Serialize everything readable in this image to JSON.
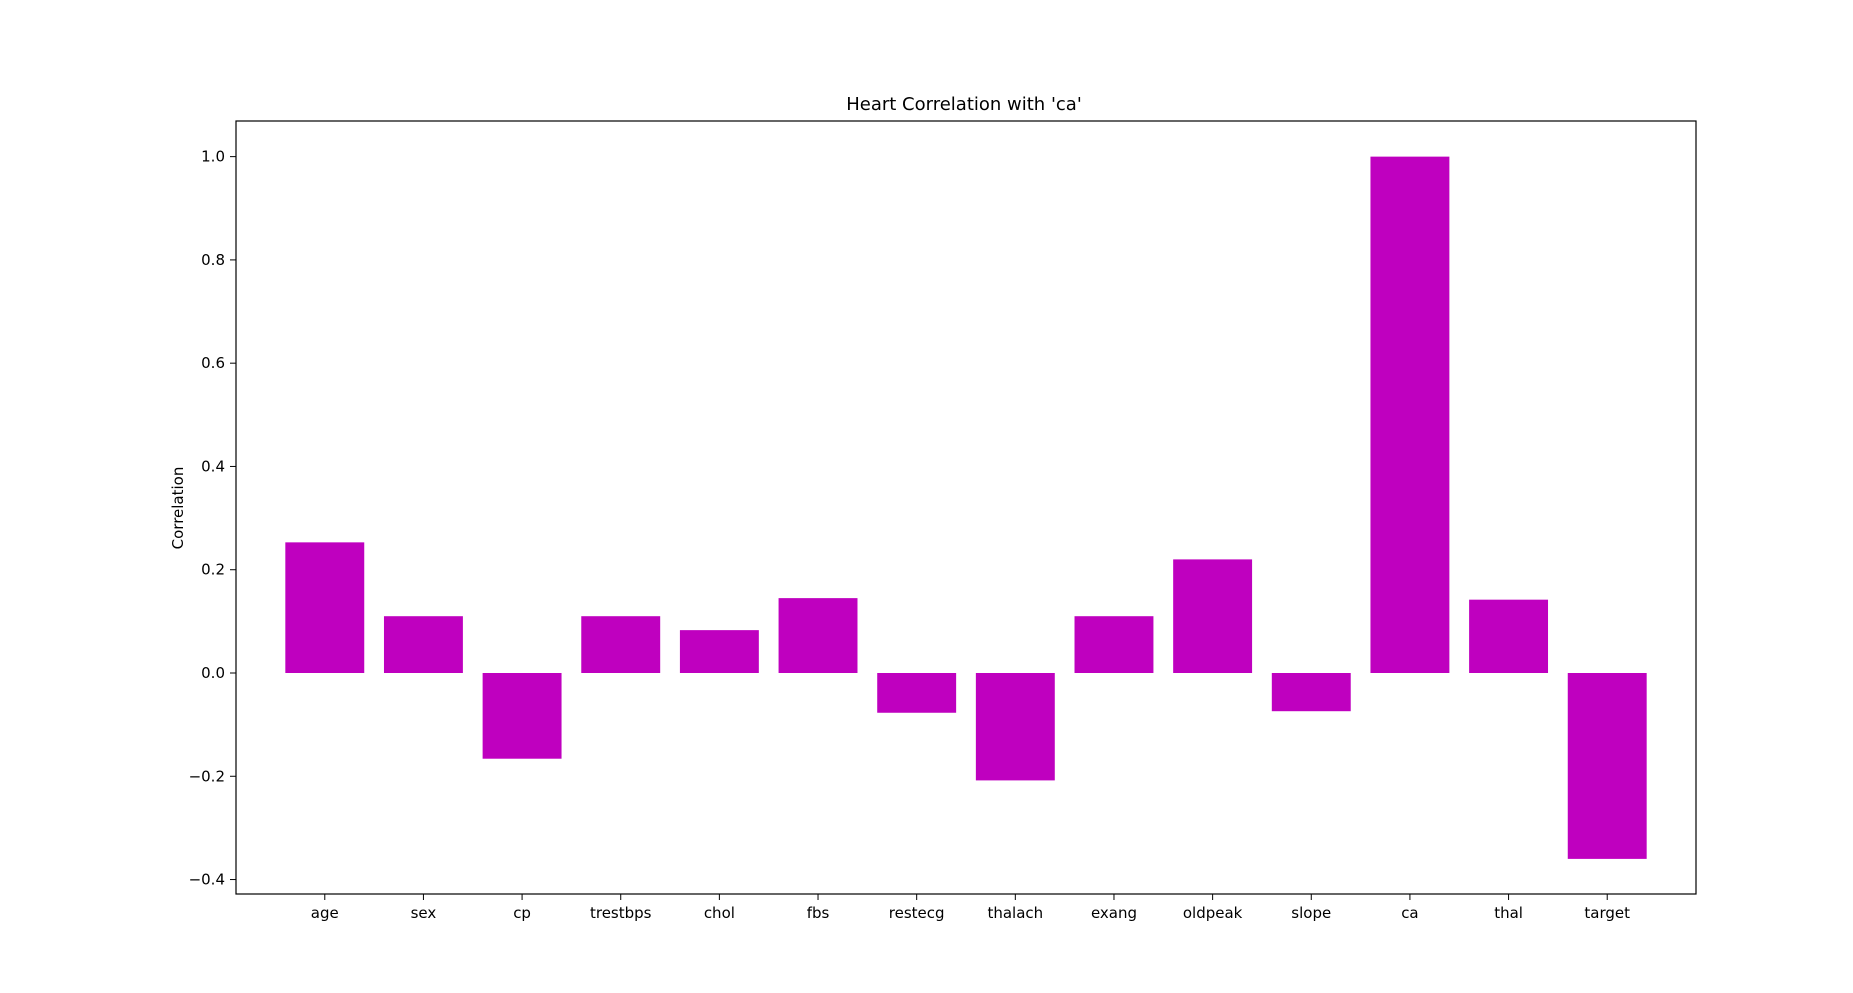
{
  "chart_data": {
    "type": "bar",
    "title": "Heart Correlation with 'ca'",
    "xlabel": "",
    "ylabel": "Correlation",
    "categories": [
      "age",
      "sex",
      "cp",
      "trestbps",
      "chol",
      "fbs",
      "restecg",
      "thalach",
      "exang",
      "oldpeak",
      "slope",
      "ca",
      "thal",
      "target"
    ],
    "values": [
      0.253,
      0.11,
      -0.166,
      0.11,
      0.083,
      0.145,
      -0.077,
      -0.208,
      0.11,
      0.22,
      -0.074,
      1.0,
      0.142,
      -0.36
    ],
    "ylim": [
      -0.428,
      1.069
    ],
    "yticks": [
      -0.4,
      -0.2,
      0.0,
      0.2,
      0.4,
      0.6,
      0.8,
      1.0
    ],
    "ytick_labels": [
      "−0.4",
      "−0.2",
      "0.0",
      "0.2",
      "0.4",
      "0.6",
      "0.8",
      "1.0"
    ],
    "bar_color": "#bf00bf",
    "grid": false,
    "legend": "none"
  }
}
